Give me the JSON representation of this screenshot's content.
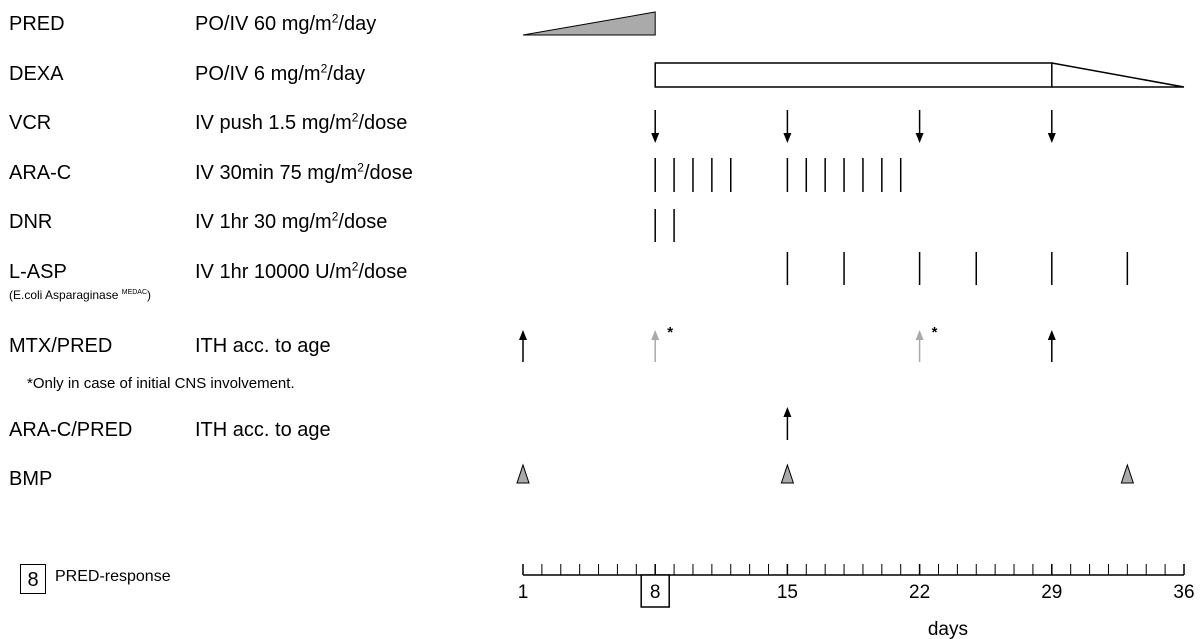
{
  "rows": [
    {
      "drug": "PRED",
      "dose": "PO/IV 60 mg/m",
      "sup": "2",
      "unit": "/day"
    },
    {
      "drug": "DEXA",
      "dose": "PO/IV 6 mg/m",
      "sup": "2",
      "unit": "/day"
    },
    {
      "drug": "VCR",
      "dose": "IV push 1.5 mg/m",
      "sup": "2",
      "unit": "/dose"
    },
    {
      "drug": "ARA-C",
      "dose": "IV 30min 75 mg/m",
      "sup": "2",
      "unit": "/dose"
    },
    {
      "drug": "DNR",
      "dose": "IV 1hr 30 mg/m",
      "sup": "2",
      "unit": "/dose"
    },
    {
      "drug": "L-ASP",
      "dose": "IV 1hr 10000 U/m",
      "sup": "2",
      "unit": "/dose"
    },
    {
      "drug": "MTX/PRED",
      "dose": "ITH acc. to age",
      "sup": "",
      "unit": ""
    },
    {
      "drug": "ARA-C/PRED",
      "dose": "ITH acc. to age",
      "sup": "",
      "unit": ""
    },
    {
      "drug": "BMP",
      "dose": "",
      "sup": "",
      "unit": ""
    }
  ],
  "lasp_subtitle_main": "(E.coli Asparaginase ",
  "lasp_subtitle_brand": "MEDAC",
  "lasp_subtitle_end": ")",
  "cns_note": "*Only in case of initial CNS involvement.",
  "pred_response": {
    "day": "8",
    "label": "PRED-response"
  },
  "axis": {
    "label": "days",
    "min": 1,
    "max": 36,
    "ticks": [
      "1",
      "8",
      "15",
      "22",
      "29",
      "36"
    ],
    "highlight_tick": "8"
  },
  "schedule": {
    "pred_ramp": [
      1,
      8
    ],
    "dexa_full": [
      8,
      29
    ],
    "dexa_taper": [
      29,
      36
    ],
    "vcr_days": [
      8,
      15,
      22,
      29
    ],
    "arac_days": [
      8,
      9,
      10,
      11,
      12,
      15,
      16,
      17,
      18,
      19,
      20,
      21
    ],
    "dnr_days": [
      8,
      9
    ],
    "lasp_days": [
      15,
      18,
      22,
      25,
      29,
      33
    ],
    "mtx_days": [
      {
        "day": 1,
        "color": "#000000",
        "star": ""
      },
      {
        "day": 8,
        "color": "#aaaaaa",
        "star": "*"
      },
      {
        "day": 22,
        "color": "#aaaaaa",
        "star": "*"
      },
      {
        "day": 29,
        "color": "#000000",
        "star": ""
      }
    ],
    "arac_pred_days": [
      15
    ],
    "bmp_days": [
      1,
      15,
      33
    ]
  },
  "colors": {
    "fill_gray": "#aaaaaa",
    "line": "#000000"
  }
}
